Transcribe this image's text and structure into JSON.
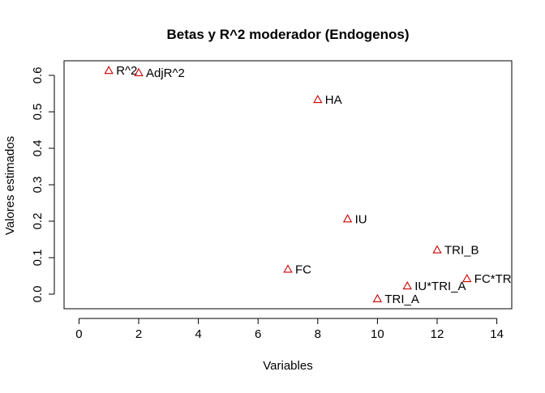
{
  "chart_data": {
    "type": "scatter",
    "title": "Betas y R^2 moderador (Endogenos)",
    "xlabel": "Variables",
    "ylabel": "Valores estimados",
    "xlim": [
      -0.5,
      14.5
    ],
    "ylim": [
      -0.04,
      0.64
    ],
    "xticks": [
      0,
      2,
      4,
      6,
      8,
      10,
      12,
      14
    ],
    "yticks": [
      0.0,
      0.1,
      0.2,
      0.3,
      0.4,
      0.5,
      0.6
    ],
    "ytick_labels": [
      "0.0",
      "0.1",
      "0.2",
      "0.3",
      "0.4",
      "0.5",
      "0.6"
    ],
    "grid": false,
    "legend": "none",
    "marker": "triangle-open",
    "marker_color": "#cc0000",
    "points": [
      {
        "label": "R^2",
        "x": 1,
        "y": 0.613
      },
      {
        "label": "AdjR^2",
        "x": 2,
        "y": 0.607
      },
      {
        "label": "HA",
        "x": 8,
        "y": 0.533
      },
      {
        "label": "IU",
        "x": 9,
        "y": 0.206
      },
      {
        "label": "TRI_B",
        "x": 12,
        "y": 0.121
      },
      {
        "label": "FC",
        "x": 7,
        "y": 0.068
      },
      {
        "label": "FC*TRI",
        "x": 13,
        "y": 0.042
      },
      {
        "label": "IU*TRI_A",
        "x": 11,
        "y": 0.022
      },
      {
        "label": "TRI_A",
        "x": 10,
        "y": -0.013
      }
    ]
  }
}
